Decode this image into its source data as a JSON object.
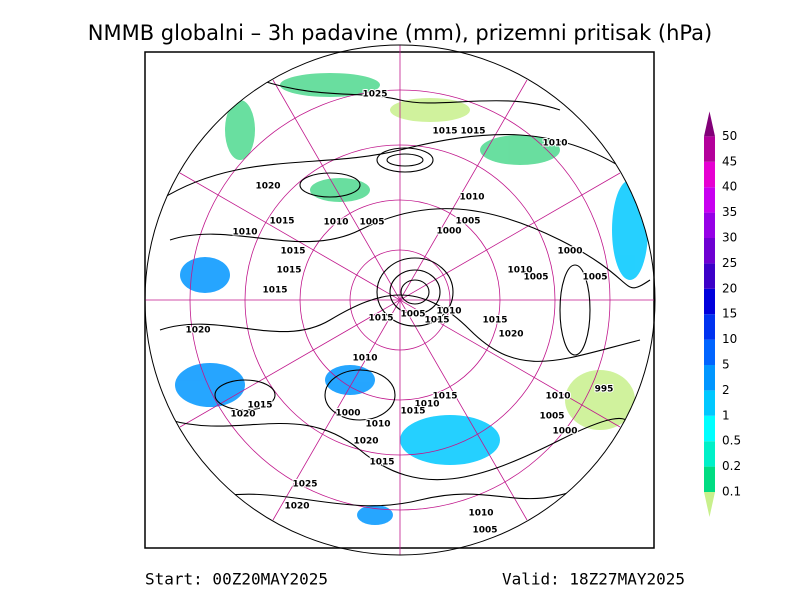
{
  "title": "NMMB globalni – 3h padavine (mm), prizemni pritisak (hPa)",
  "legend": {
    "levels": [
      "0.1",
      "0.2",
      "0.5",
      "1",
      "2",
      "5",
      "10",
      "15",
      "20",
      "25",
      "30",
      "35",
      "40",
      "45",
      "50"
    ],
    "colors": [
      "#c8f08c",
      "#00dc82",
      "#00f0c8",
      "#00ffff",
      "#00c8ff",
      "#0096ff",
      "#0064ff",
      "#0032f0",
      "#0000dc",
      "#3c00c8",
      "#6e00d2",
      "#9600e6",
      "#c800f0",
      "#e600d2",
      "#b4009b",
      "#820078"
    ]
  },
  "map": {
    "isobar_labels": [
      "1025",
      "1015",
      "1015",
      "1010",
      "1020",
      "1010",
      "1015",
      "1010",
      "1005",
      "1005",
      "1010",
      "1000",
      "1015",
      "1000",
      "1015",
      "1010",
      "1005",
      "1005",
      "1015",
      "1005",
      "1015",
      "1010",
      "1015",
      "1015",
      "1020",
      "1020",
      "1010",
      "995",
      "1015",
      "1010",
      "1015",
      "1010",
      "1020",
      "1000",
      "1015",
      "1010",
      "1005",
      "1000",
      "1020",
      "1015",
      "1025",
      "1020",
      "1010",
      "1005"
    ]
  },
  "footer": {
    "start": "Start: 00Z20MAY2025",
    "valid": "Valid: 18Z27MAY2025"
  }
}
